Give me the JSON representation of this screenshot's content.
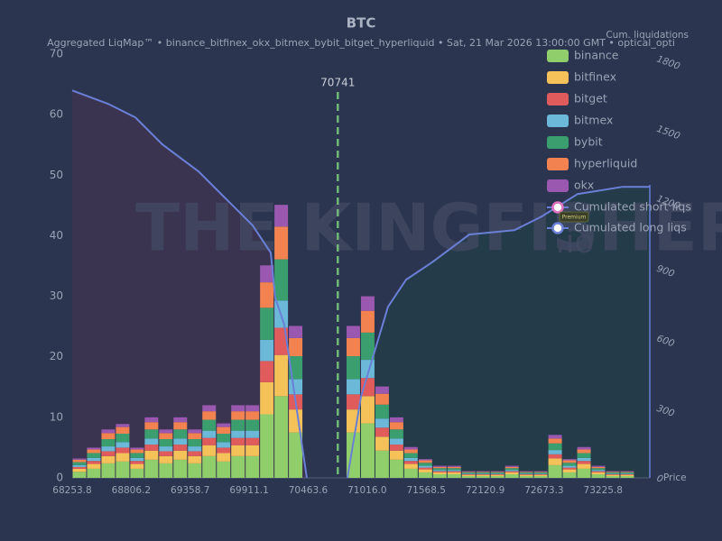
{
  "chart_data": {
    "type": "histogram",
    "title": "BTC",
    "subtitle": "Aggregated LiqMap™  •  binance_bitfinex_okx_bitmex_bybit_bitget_hyperliquid  •  Sat, 21 Mar 2026 13:00:00 GMT  •  optical_opti",
    "watermark": "THE KINGFISHER",
    "watermark_suffix": ".io",
    "badge": "Premium",
    "xlabel": "Price",
    "y2label": "Cum. liquidations",
    "current_price": 70741,
    "xlim": [
      68253.8,
      73663
    ],
    "xticks": [
      68253.8,
      68806.2,
      69358.7,
      69911.1,
      70463.6,
      {
        "value": 71016,
        "label": "71016.0"
      },
      71568.5,
      72120.9,
      72673.3,
      73225.8
    ],
    "ylim": [
      0,
      70
    ],
    "yticks": [
      0,
      10,
      20,
      30,
      40,
      50,
      60,
      70
    ],
    "y2lim": [
      0,
      1820
    ],
    "y2ticks": [
      0,
      300,
      600,
      900,
      1200,
      1500,
      1800
    ],
    "legend": "upper right",
    "bins": [
      68253.8,
      68388.8,
      68523.8,
      68658.8,
      68793.8,
      68928.8,
      69063.8,
      69198.8,
      69333.8,
      69468.8,
      69603.8,
      69738.8,
      69873.8,
      70008.8,
      70143.8,
      70278.8,
      70413.8,
      70548.8,
      70683.8,
      70818.8,
      70953.8,
      71088.8,
      71223.8,
      71358.8,
      71493.8,
      71628.8,
      71763.8,
      71898.8,
      72033.8,
      72168.8,
      72303.8,
      72438.8,
      72573.8,
      72708.8,
      72843.8,
      72978.8,
      73113.8,
      73248.8,
      73383.8,
      73518.8,
      73653.8
    ],
    "series": [
      {
        "name": "binance",
        "color": "#8fce6a",
        "values": [
          1,
          1.5,
          2.4,
          2.7,
          1.5,
          3,
          2.4,
          3,
          2.4,
          3.6,
          2.7,
          3.6,
          3.6,
          10.5,
          13.5,
          7.5,
          0,
          0,
          0,
          7.5,
          9,
          4.5,
          3,
          1.5,
          0.9,
          0.6,
          0.6,
          0.3,
          0.3,
          0.3,
          0.6,
          0.3,
          0.3,
          2.1,
          0.9,
          1.5,
          0.6,
          0.3,
          0.3,
          0
        ]
      },
      {
        "name": "bitfinex",
        "color": "#f5c25a",
        "values": [
          0.5,
          0.8,
          1.2,
          1.4,
          0.8,
          1.5,
          1.2,
          1.5,
          1.2,
          1.8,
          1.4,
          1.8,
          1.8,
          5.3,
          6.8,
          3.8,
          0,
          0,
          0,
          3.8,
          4.5,
          2.3,
          1.5,
          0.8,
          0.5,
          0.3,
          0.3,
          0.2,
          0.2,
          0.2,
          0.3,
          0.2,
          0.2,
          1.1,
          0.5,
          0.8,
          0.3,
          0.2,
          0.2,
          0
        ]
      },
      {
        "name": "bitget",
        "color": "#e05c5c",
        "values": [
          0.3,
          0.5,
          0.8,
          0.9,
          0.5,
          1,
          0.8,
          1,
          0.8,
          1.2,
          0.9,
          1.2,
          1.2,
          3.5,
          4.5,
          2.5,
          0,
          0,
          0,
          2.5,
          3,
          1.5,
          1,
          0.5,
          0.3,
          0.2,
          0.2,
          0.1,
          0.1,
          0.1,
          0.2,
          0.1,
          0.1,
          0.7,
          0.3,
          0.5,
          0.2,
          0.1,
          0.1,
          0
        ]
      },
      {
        "name": "bitmex",
        "color": "#6bb8d9",
        "values": [
          0.3,
          0.5,
          0.8,
          0.9,
          0.5,
          1,
          0.8,
          1,
          0.8,
          1.2,
          0.9,
          1.2,
          1.2,
          3.5,
          4.5,
          2.5,
          0,
          0,
          0,
          2.5,
          3,
          1.5,
          1,
          0.5,
          0.3,
          0.2,
          0.2,
          0.1,
          0.1,
          0.1,
          0.2,
          0.1,
          0.1,
          0.7,
          0.3,
          0.5,
          0.2,
          0.1,
          0.1,
          0
        ]
      },
      {
        "name": "bybit",
        "color": "#3a9e6e",
        "values": [
          0.5,
          0.8,
          1.2,
          1.4,
          0.8,
          1.5,
          1.2,
          1.5,
          1.2,
          1.8,
          1.4,
          1.8,
          1.8,
          5.3,
          6.8,
          3.8,
          0,
          0,
          0,
          3.8,
          4.5,
          2.3,
          1.5,
          0.8,
          0.5,
          0.3,
          0.3,
          0.2,
          0.2,
          0.2,
          0.3,
          0.2,
          0.2,
          1.1,
          0.5,
          0.8,
          0.3,
          0.2,
          0.2,
          0
        ]
      },
      {
        "name": "hyperliquid",
        "color": "#f28350",
        "values": [
          0.4,
          0.6,
          1,
          1.1,
          0.6,
          1.2,
          1,
          1.2,
          1,
          1.4,
          1.1,
          1.4,
          1.4,
          4.2,
          5.4,
          3,
          0,
          0,
          0,
          3,
          3.6,
          1.8,
          1.2,
          0.6,
          0.4,
          0.2,
          0.2,
          0.1,
          0.1,
          0.1,
          0.2,
          0.1,
          0.1,
          0.8,
          0.4,
          0.6,
          0.2,
          0.1,
          0.1,
          0
        ]
      },
      {
        "name": "okx",
        "color": "#9a58b0",
        "values": [
          0.2,
          0.3,
          0.6,
          0.5,
          0.3,
          0.8,
          0.6,
          0.8,
          0.6,
          1,
          0.6,
          1,
          1,
          2.8,
          3.6,
          2,
          0,
          0,
          0,
          2,
          2.4,
          1.2,
          0.8,
          0.4,
          0.2,
          0.2,
          0.2,
          0.1,
          0.1,
          0.1,
          0.2,
          0.1,
          0.1,
          0.6,
          0.2,
          0.4,
          0.2,
          0.1,
          0.1,
          0
        ]
      }
    ],
    "lines": [
      {
        "name": "Cumulated short liqs",
        "color": "#6a7fd6",
        "marker_color": "#e070c0",
        "fill": "#243c48",
        "axis": "y2",
        "x": [
          70831,
          70958,
          71211.6,
          71380.7,
          71634.2,
          71972.2,
          72394.8,
          72648.3,
          72986.4,
          73409,
          73662
        ],
        "values": [
          0,
          348,
          735,
          851,
          929,
          1045,
          1064,
          1122,
          1219,
          1250,
          1250
        ]
      },
      {
        "name": "Cumulated long liqs",
        "color": "#6a7fd6",
        "marker_color": "#6a7fd6",
        "fill": "#3d3450",
        "axis": "y2",
        "x": [
          68253.8,
          68591.8,
          68845.4,
          69098.9,
          69436.9,
          69690.5,
          69944,
          70113,
          70155,
          70240,
          70451
        ],
        "values": [
          1664,
          1606,
          1548,
          1432,
          1316,
          1200,
          1084,
          967,
          774,
          658,
          0
        ]
      }
    ]
  }
}
